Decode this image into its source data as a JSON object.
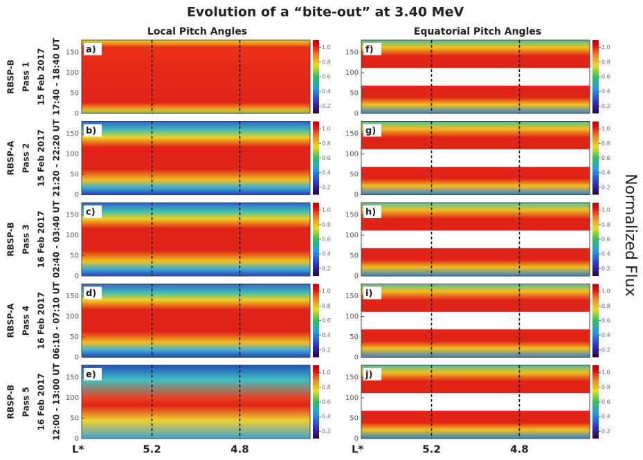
{
  "title": "Evolution of a “bite-out” at 3.40 MeV",
  "columns": [
    "Local Pitch Angles",
    "Equatorial Pitch Angles"
  ],
  "colorbar_label": "Normalized Flux",
  "ylim": [
    0,
    180
  ],
  "yticks": [
    0,
    50,
    100,
    150
  ],
  "colorbar_lim": [
    0.1,
    1.1
  ],
  "colorbar_ticks": [
    0.2,
    0.4,
    0.6,
    0.8,
    {
      "value": 1,
      "label": "1.0"
    }
  ],
  "x_axis": {
    "label": "L*",
    "xlim": [
      5.52,
      4.48
    ],
    "ticks": [
      5.2,
      4.8
    ]
  },
  "rows": [
    {
      "probe": "RBSP-B",
      "pass": "Pass 1",
      "date": "15 Feb 2017",
      "time": "17:40 - 18:40 UT",
      "panels": [
        "a)",
        "f)"
      ]
    },
    {
      "probe": "RBSP-A",
      "pass": "Pass 2",
      "date": "15 Feb 2017",
      "time": "21:20 - 22:20 UT",
      "panels": [
        "b)",
        "g)"
      ]
    },
    {
      "probe": "RBSP-B",
      "pass": "Pass 3",
      "date": "16 Feb 2017",
      "time": "02:40 - 03:40 UT",
      "panels": [
        "c)",
        "h)"
      ]
    },
    {
      "probe": "RBSP-A",
      "pass": "Pass 4",
      "date": "16 Feb 2017",
      "time": "06:10 - 07:10 UT",
      "panels": [
        "d)",
        "i)"
      ]
    },
    {
      "probe": "RBSP-B",
      "pass": "Pass 5",
      "date": "16 Feb 2017",
      "time": "12:00 - 13:00 UT",
      "panels": [
        "e)",
        "j)"
      ]
    }
  ]
}
